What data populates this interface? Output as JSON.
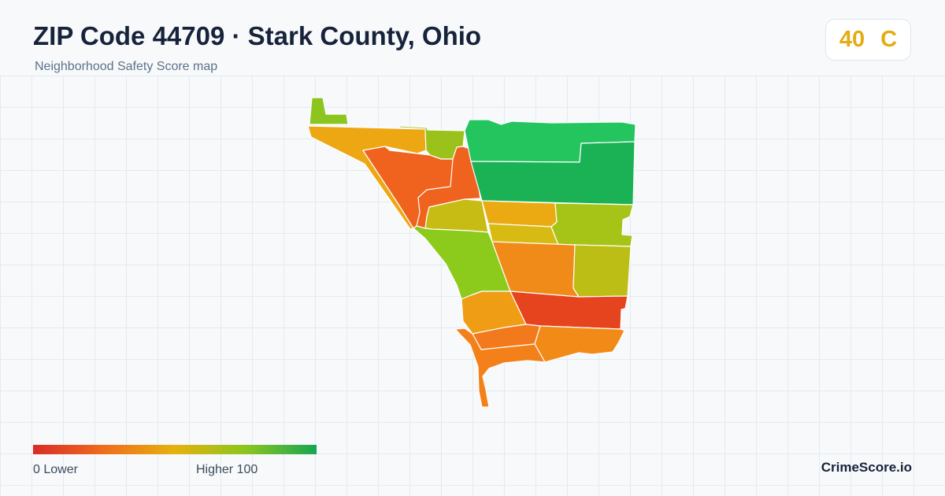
{
  "header": {
    "title": "ZIP Code 44709 · Stark County, Ohio",
    "subtitle": "Neighborhood Safety Score map"
  },
  "score_badge": {
    "score": "40",
    "grade": "C",
    "color": "#e3ac13"
  },
  "map": {
    "tracts": [
      {
        "name": "tract-northwest-spur",
        "score": 72,
        "color": "#8cc51f"
      },
      {
        "name": "tract-northwest-band",
        "score": 47,
        "color": "#eda713"
      },
      {
        "name": "tract-north-small",
        "score": 68,
        "color": "#9bc21a"
      },
      {
        "name": "tract-west-central",
        "score": 24,
        "color": "#f0631e"
      },
      {
        "name": "tract-northeast-upper",
        "score": 88,
        "color": "#24c45f"
      },
      {
        "name": "tract-northeast-lower",
        "score": 94,
        "color": "#1bb255"
      },
      {
        "name": "tract-west-small",
        "score": 58,
        "color": "#c7bc14"
      },
      {
        "name": "tract-center-north",
        "score": 46,
        "color": "#ebaa12"
      },
      {
        "name": "tract-center-mid",
        "score": 54,
        "color": "#d8bb12"
      },
      {
        "name": "tract-east-upper",
        "score": 64,
        "color": "#a6c418"
      },
      {
        "name": "tract-southwest-diagonal",
        "score": 72,
        "color": "#8ccb1b"
      },
      {
        "name": "tract-center-south",
        "score": 36,
        "color": "#f08b1a"
      },
      {
        "name": "tract-east-lower",
        "score": 60,
        "color": "#bcbd15"
      },
      {
        "name": "tract-south-west",
        "score": 40,
        "color": "#ef9d15"
      },
      {
        "name": "tract-south-east",
        "score": 12,
        "color": "#e6441f"
      },
      {
        "name": "tract-south-strip-west",
        "score": 30,
        "color": "#f27a1c"
      },
      {
        "name": "tract-south-strip-east",
        "score": 34,
        "color": "#f28a18"
      },
      {
        "name": "tract-southern-tail",
        "score": 32,
        "color": "#f4801a"
      }
    ]
  },
  "legend": {
    "min_label": "0  Lower",
    "max_label": "Higher  100",
    "colors": [
      "#d92b28",
      "#ee6e1c",
      "#e6b10f",
      "#8cc51f",
      "#16a653"
    ]
  },
  "brand": "CrimeScore.io"
}
